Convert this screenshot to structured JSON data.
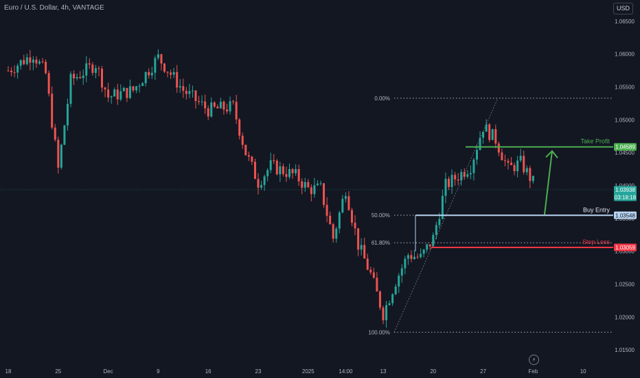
{
  "header": {
    "symbol_title": "Euro / U.S. Dollar, 4h, VANTAGE",
    "currency": "USD"
  },
  "icons": {
    "settings": "lightning-icon"
  },
  "chart_data": {
    "type": "candlestick",
    "symbol": "EURUSD",
    "timeframe": "4h",
    "y_axis": {
      "range": [
        1.0135,
        1.0675
      ],
      "ticks": [
        "1.06500",
        "1.06000",
        "1.05500",
        "1.05000",
        "1.04500",
        "1.04000",
        "1.03500",
        "1.03000",
        "1.02500",
        "1.02000",
        "1.01500"
      ]
    },
    "x_axis": {
      "ticks": [
        "18",
        "25",
        "Dec",
        "9",
        "16",
        "23",
        "2025",
        "14:00",
        "13",
        "20",
        "27",
        "Feb",
        "10"
      ],
      "tick_positions": [
        0,
        4,
        8,
        12,
        16,
        20,
        24,
        27,
        30,
        34,
        38,
        42,
        46
      ]
    },
    "price_path": [
      [
        0,
        1.0575
      ],
      [
        2,
        1.06
      ],
      [
        3,
        1.057
      ],
      [
        4,
        1.0425
      ],
      [
        5,
        1.056
      ],
      [
        7,
        1.0585
      ],
      [
        8,
        1.0535
      ],
      [
        10,
        1.0545
      ],
      [
        12,
        1.0595
      ],
      [
        14,
        1.0545
      ],
      [
        16,
        1.0515
      ],
      [
        18,
        1.052
      ],
      [
        19,
        1.045
      ],
      [
        20,
        1.0405
      ],
      [
        21,
        1.043
      ],
      [
        23,
        1.0415
      ],
      [
        24,
        1.0395
      ],
      [
        25,
        1.0395
      ],
      [
        26,
        1.032
      ],
      [
        27,
        1.0395
      ],
      [
        28,
        1.031
      ],
      [
        29,
        1.0265
      ],
      [
        30,
        1.0205
      ],
      [
        31,
        1.0255
      ],
      [
        32,
        1.0295
      ],
      [
        33,
        1.029
      ],
      [
        34,
        1.032
      ],
      [
        35,
        1.04
      ],
      [
        37,
        1.043
      ],
      [
        38,
        1.049
      ],
      [
        39,
        1.047
      ],
      [
        40,
        1.0425
      ],
      [
        41,
        1.0435
      ],
      [
        42,
        1.0405
      ]
    ],
    "current_price": {
      "value": "1.03938",
      "countdown": "03:18:18"
    },
    "fibonacci": [
      {
        "label": "0.00%",
        "value": 1.0533
      },
      {
        "label": "50.00%",
        "value": 1.0355
      },
      {
        "label": "61.80%",
        "value": 1.0313
      },
      {
        "label": "100.00%",
        "value": 1.0177
      }
    ],
    "levels": [
      {
        "name": "Take Profit",
        "value": "1.04589",
        "color": "#4caf50"
      },
      {
        "name": "Buy Entry",
        "value": "1.03548",
        "color": "#b7d3f0"
      },
      {
        "name": "Stop Loss",
        "value": "1.03059",
        "color": "#f23645"
      }
    ],
    "colors": {
      "up": "#26a69a",
      "down": "#ef5350",
      "background": "#131722",
      "grid": "#2a2e39",
      "text": "#b2b5be"
    }
  }
}
